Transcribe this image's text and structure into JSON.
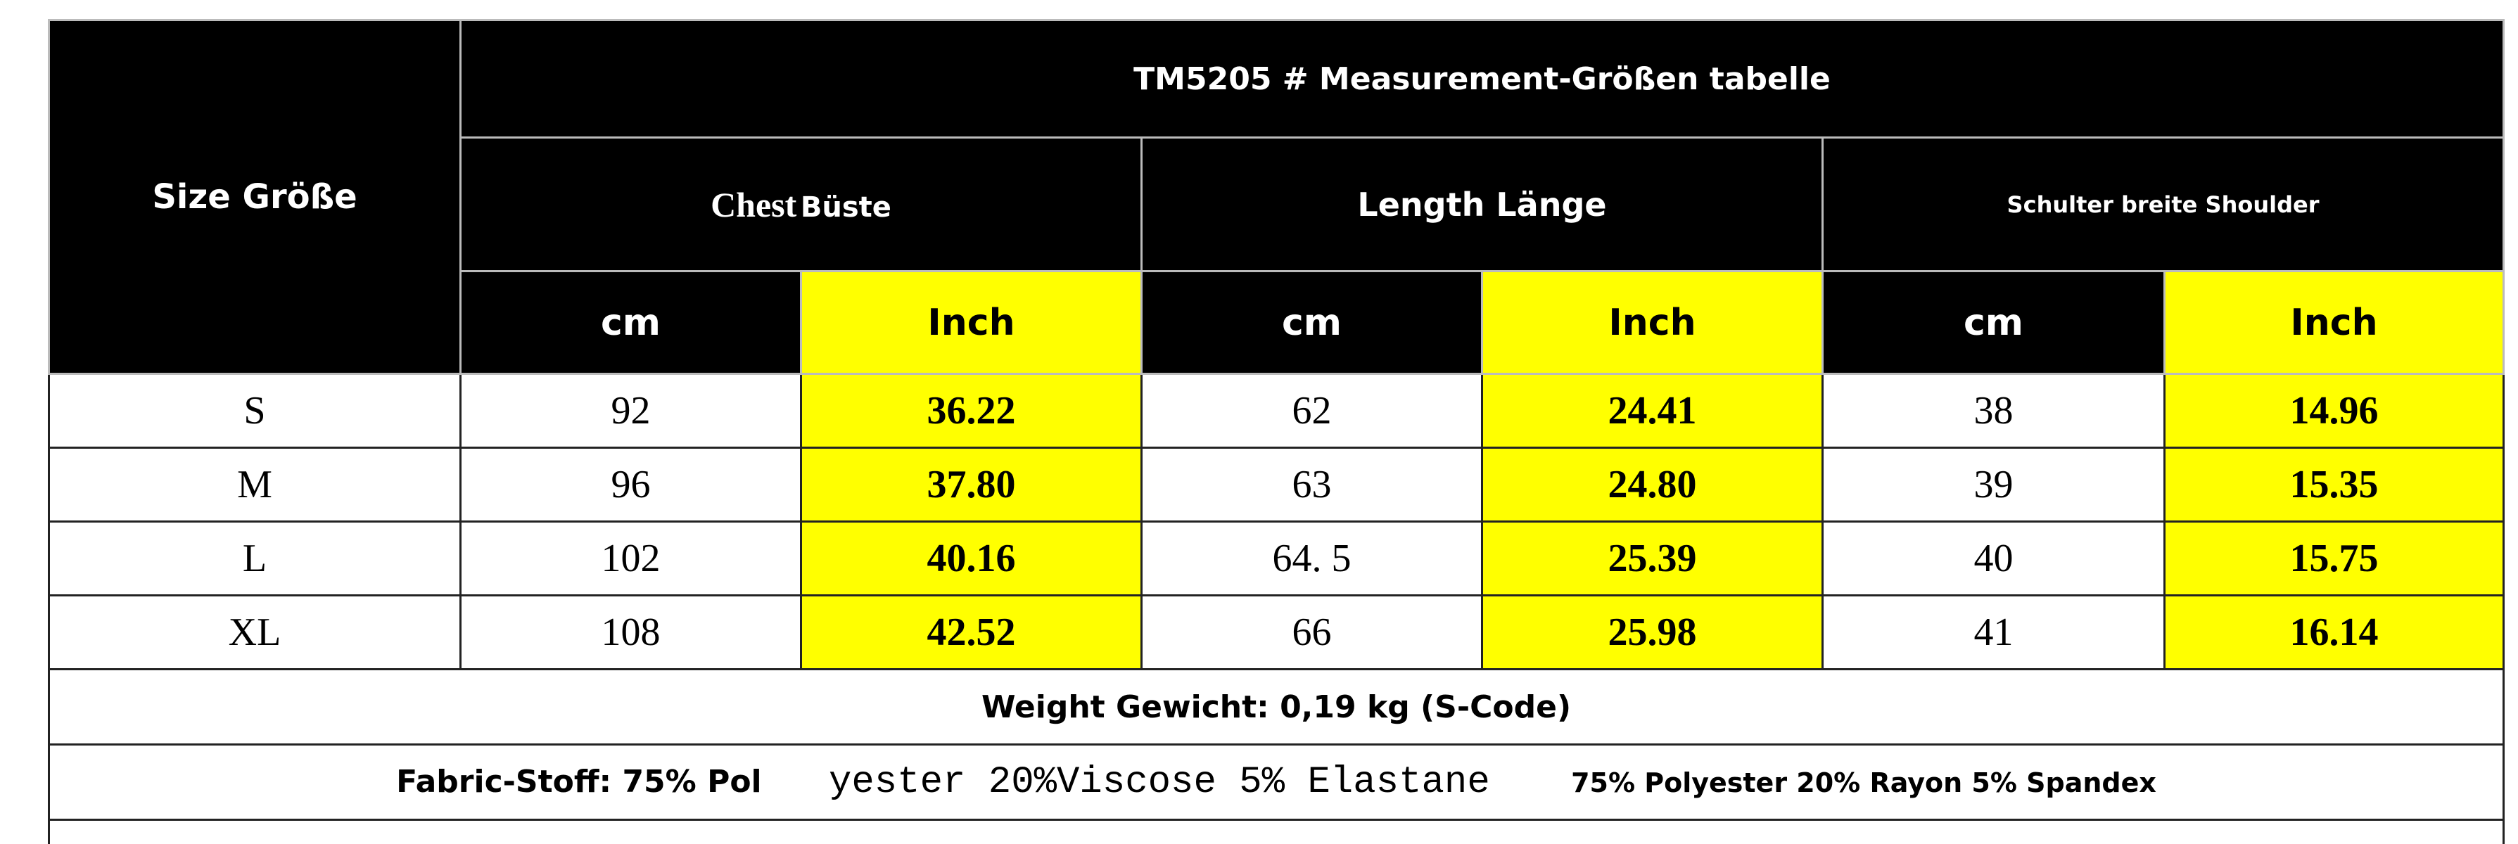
{
  "header": {
    "size_label": "Size Größe",
    "title": "TM5205 # Measurement-Größen tabelle",
    "chest": [
      "Chest",
      "Büste"
    ],
    "length": "Length Länge",
    "shoulder": "Schulter breite Shoulder",
    "units": [
      "cm",
      "Inch",
      "cm",
      "Inch",
      "cm",
      "Inch"
    ]
  },
  "table": {
    "rows": [
      [
        "S",
        "92",
        "36.22",
        "62",
        "24.41",
        "38",
        "14.96"
      ],
      [
        "M",
        "96",
        "37.80",
        "63",
        "24.80",
        "39",
        "15.35"
      ],
      [
        "L",
        "102",
        "40.16",
        "64. 5",
        "25.39",
        "40",
        "15.75"
      ],
      [
        "XL",
        "108",
        "42.52",
        "66",
        "25.98",
        "41",
        "16.14"
      ]
    ]
  },
  "weight": "Weight Gewicht: 0,19 kg (S-Code)",
  "fabric": [
    "Fabric-Stoff: 75% Pol",
    "yester 20%Viscose 5% Elastane",
    "75% Polyester 20% Rayon 5% Spandex"
  ]
}
